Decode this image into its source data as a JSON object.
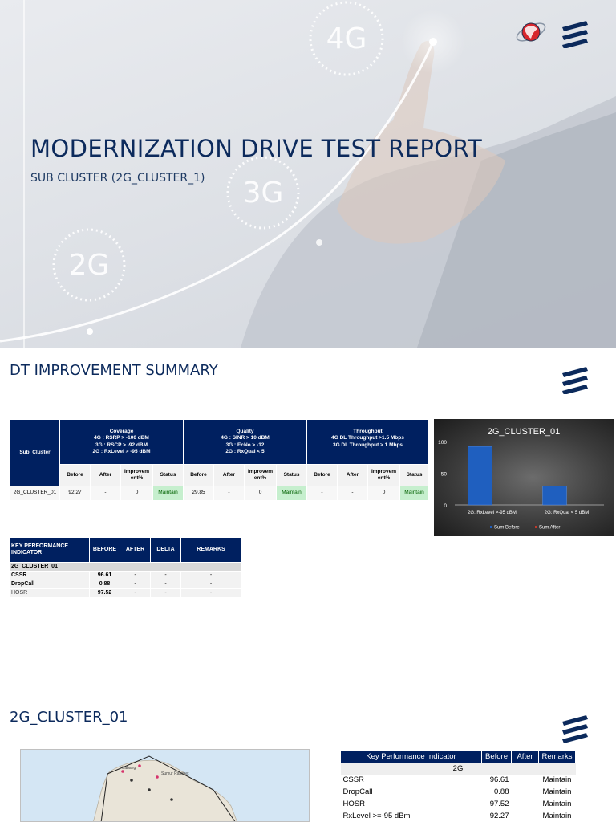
{
  "cover": {
    "title": "MODERNIZATION DRIVE TEST REPORT",
    "subtitle": "SUB CLUSTER (2G_CLUSTER_1)",
    "badges": [
      "4G",
      "3G",
      "2G"
    ]
  },
  "brand": {
    "logo_icon": "ericsson-logo-icon",
    "partner_icon": "telkomsel-globe-icon",
    "accent_color": "#002060",
    "ok_color": "#c6efce"
  },
  "summary": {
    "title": "DT IMPROVEMENT SUMMARY",
    "table": {
      "sub_cluster_label": "Sub_Cluster",
      "groups": [
        {
          "name": "Coverage",
          "criteria": [
            "4G : RSRP > -100 dBM",
            "3G : RSCP > -92 dBM",
            "2G : RxLevel > -95 dBM"
          ]
        },
        {
          "name": "Quality",
          "criteria": [
            "4G : SINR > 10 dBM",
            "3G : EcNo > -12",
            "2G : RxQual < 5"
          ]
        },
        {
          "name": "Throughput",
          "criteria": [
            "4G DL Throughput >1.5 Mbps",
            "3G DL Throughput > 1 Mbps"
          ]
        }
      ],
      "subheaders": [
        "Before",
        "After",
        "Improvem ent%",
        "Status"
      ],
      "rows": [
        {
          "name": "2G_CLUSTER_01",
          "values": [
            "92.27",
            "-",
            "0",
            "Maintain",
            "29.85",
            "-",
            "0",
            "Maintain",
            "-",
            "-",
            "0",
            "Maintain"
          ]
        }
      ]
    }
  },
  "chart_data": {
    "type": "bar",
    "title": "2G_CLUSTER_01",
    "categories": [
      "2G: RxLevel >-95 dBM",
      "2G: RxQual < 5 dBM"
    ],
    "series": [
      {
        "name": "Sum Before",
        "values": [
          92.27,
          29.85
        ],
        "color": "#1f5fbf"
      },
      {
        "name": "Sum After",
        "values": [
          0,
          0
        ],
        "color": "#c0392b"
      }
    ],
    "ylim": [
      0,
      100
    ],
    "yticks": [
      "0",
      "50",
      "100"
    ],
    "legend": "bottom",
    "grid": false
  },
  "kpi": {
    "headers": [
      "KEY PERFORMANCE INDICATOR",
      "BEFORE",
      "AFTER",
      "DELTA",
      "REMARKS"
    ],
    "group": "2G_CLUSTER_01",
    "rows": [
      {
        "name": "CSSR",
        "before": "96.61",
        "after": "-",
        "delta": "-",
        "remarks": "-"
      },
      {
        "name": "DropCall",
        "before": "0.88",
        "after": "-",
        "delta": "-",
        "remarks": "-"
      },
      {
        "name": "HOSR",
        "before": "97.52",
        "after": "-",
        "delta": "-",
        "remarks": "-"
      }
    ]
  },
  "cluster": {
    "title": "2G_CLUSTER_01",
    "map_labels": [
      "Sabang",
      "Sumur Raschet"
    ],
    "kpi": {
      "headers": [
        "Key Performance Indicator",
        "Before",
        "After",
        "Remarks"
      ],
      "group": "2G",
      "rows": [
        {
          "name": "CSSR",
          "before": "96.61",
          "after": "",
          "remarks": "Maintain"
        },
        {
          "name": "DropCall",
          "before": "0.88",
          "after": "",
          "remarks": "Maintain"
        },
        {
          "name": "HOSR",
          "before": "97.52",
          "after": "",
          "remarks": "Maintain"
        },
        {
          "name": "RxLevel >=-95 dBm",
          "before": "92.27",
          "after": "",
          "remarks": "Maintain"
        }
      ]
    }
  }
}
